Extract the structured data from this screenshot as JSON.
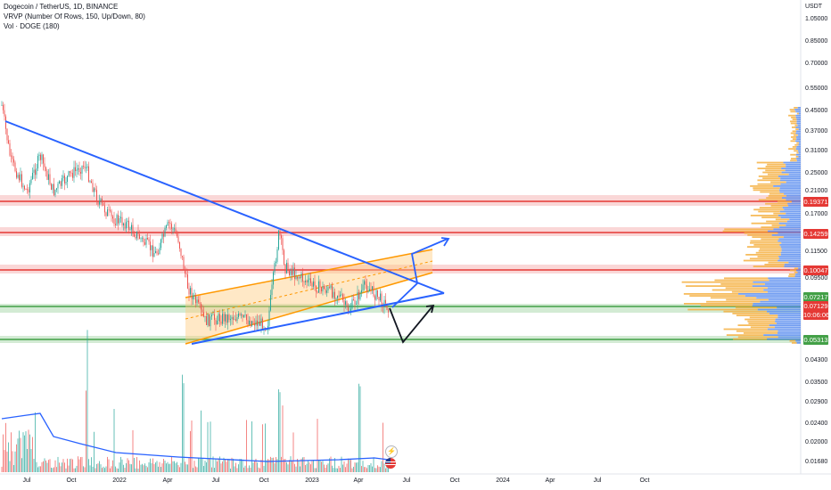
{
  "legend": {
    "symbol": "Dogecoin / TetherUS, 1D, BINANCE",
    "vrvp": "VRVP (Number Of Rows, 150, Up/Down, 80)",
    "vol": "Vol · DOGE (180)"
  },
  "currency": "USDT",
  "price_axis": [
    "1.05000",
    "0.85000",
    "0.70000",
    "0.55000",
    "0.45000",
    "0.37000",
    "0.31000",
    "0.25000",
    "0.21000",
    "0.17000",
    "0.11500",
    "0.09500",
    "0.04300",
    "0.03500",
    "0.02900",
    "0.02400",
    "0.02000",
    "0.01680"
  ],
  "price_labels": [
    {
      "text": "0.19371",
      "color": "#e53935"
    },
    {
      "text": "0.14259",
      "color": "#e53935"
    },
    {
      "text": "0.10047",
      "color": "#e53935"
    },
    {
      "text": "0.07217",
      "color": "#43a047"
    },
    {
      "text": "0.07129",
      "color": "#e53935"
    },
    {
      "text": "10:06:06",
      "color": "#e53935"
    },
    {
      "text": "0.05313",
      "color": "#43a047"
    }
  ],
  "time_axis": [
    "Jul",
    "Oct",
    "2022",
    "Apr",
    "Jul",
    "Oct",
    "2023",
    "Apr",
    "Jul",
    "Oct",
    "2024",
    "Apr",
    "Jul",
    "Oct"
  ],
  "icons": {
    "lightning": "lightning-icon",
    "flag": "us-flag-icon"
  },
  "colors": {
    "resistance": "#e53935",
    "support": "#43a047",
    "trend": "#2962ff",
    "channel": "#ff9800",
    "up": "#26a69a",
    "down": "#ef5350"
  }
}
